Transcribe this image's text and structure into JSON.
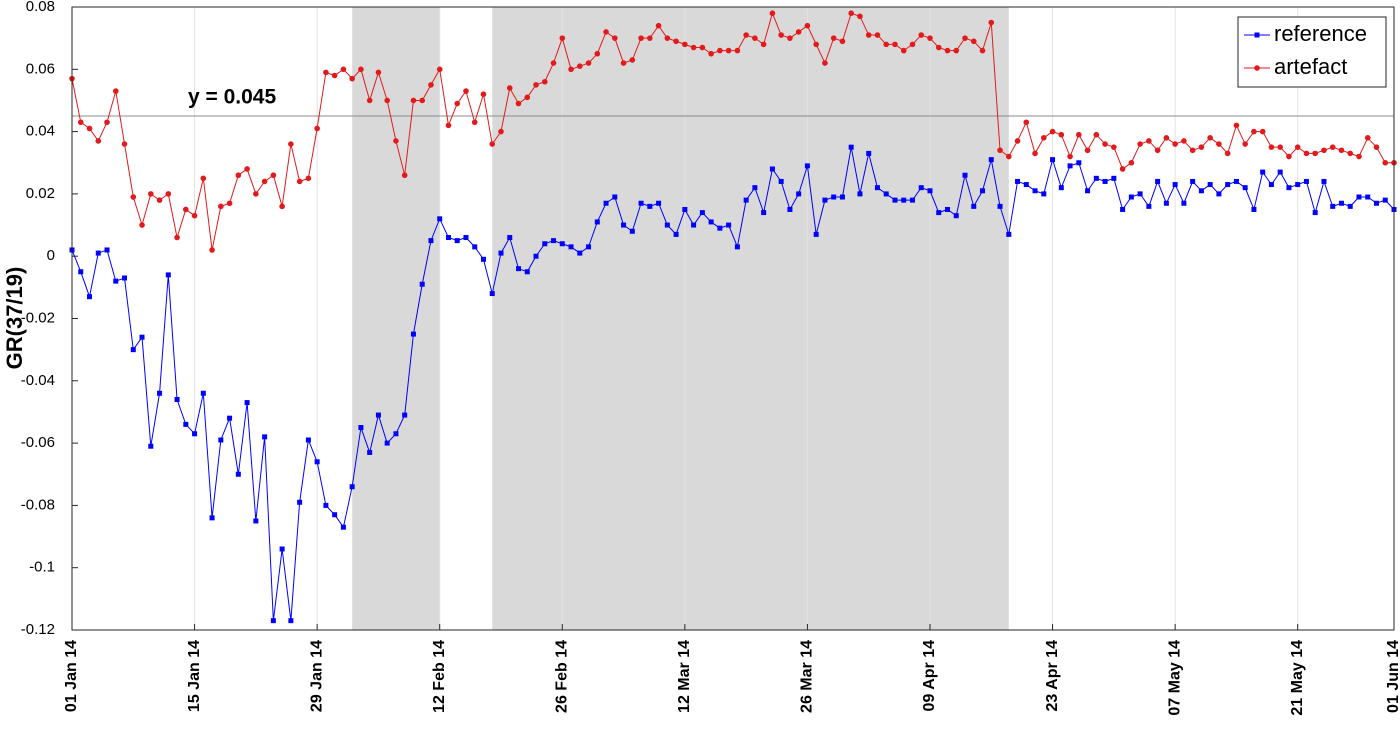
{
  "chart_data": {
    "type": "line",
    "y_label": "GR(37/19)",
    "x": [
      "2014-01-01",
      "2014-01-02",
      "2014-01-03",
      "2014-01-04",
      "2014-01-05",
      "2014-01-06",
      "2014-01-07",
      "2014-01-08",
      "2014-01-09",
      "2014-01-10",
      "2014-01-11",
      "2014-01-12",
      "2014-01-13",
      "2014-01-14",
      "2014-01-15",
      "2014-01-16",
      "2014-01-17",
      "2014-01-18",
      "2014-01-19",
      "2014-01-20",
      "2014-01-21",
      "2014-01-22",
      "2014-01-23",
      "2014-01-24",
      "2014-01-25",
      "2014-01-26",
      "2014-01-27",
      "2014-01-28",
      "2014-01-29",
      "2014-01-30",
      "2014-01-31",
      "2014-02-01",
      "2014-02-02",
      "2014-02-03",
      "2014-02-04",
      "2014-02-05",
      "2014-02-06",
      "2014-02-07",
      "2014-02-08",
      "2014-02-09",
      "2014-02-10",
      "2014-02-11",
      "2014-02-12",
      "2014-02-13",
      "2014-02-14",
      "2014-02-15",
      "2014-02-16",
      "2014-02-17",
      "2014-02-18",
      "2014-02-19",
      "2014-02-20",
      "2014-02-21",
      "2014-02-22",
      "2014-02-23",
      "2014-02-24",
      "2014-02-25",
      "2014-02-26",
      "2014-02-27",
      "2014-02-28",
      "2014-03-01",
      "2014-03-02",
      "2014-03-03",
      "2014-03-04",
      "2014-03-05",
      "2014-03-06",
      "2014-03-07",
      "2014-03-08",
      "2014-03-09",
      "2014-03-10",
      "2014-03-11",
      "2014-03-12",
      "2014-03-13",
      "2014-03-14",
      "2014-03-15",
      "2014-03-16",
      "2014-03-17",
      "2014-03-18",
      "2014-03-19",
      "2014-03-20",
      "2014-03-21",
      "2014-03-22",
      "2014-03-23",
      "2014-03-24",
      "2014-03-25",
      "2014-03-26",
      "2014-03-27",
      "2014-03-28",
      "2014-03-29",
      "2014-03-30",
      "2014-03-31",
      "2014-04-01",
      "2014-04-02",
      "2014-04-03",
      "2014-04-04",
      "2014-04-05",
      "2014-04-06",
      "2014-04-07",
      "2014-04-08",
      "2014-04-09",
      "2014-04-10",
      "2014-04-11",
      "2014-04-12",
      "2014-04-13",
      "2014-04-14",
      "2014-04-15",
      "2014-04-16",
      "2014-04-17",
      "2014-04-18",
      "2014-04-19",
      "2014-04-20",
      "2014-04-21",
      "2014-04-22",
      "2014-04-23",
      "2014-04-24",
      "2014-04-25",
      "2014-04-26",
      "2014-04-27",
      "2014-04-28",
      "2014-04-29",
      "2014-04-30",
      "2014-05-01",
      "2014-05-02",
      "2014-05-03",
      "2014-05-04",
      "2014-05-05",
      "2014-05-06",
      "2014-05-07",
      "2014-05-08",
      "2014-05-09",
      "2014-05-10",
      "2014-05-11",
      "2014-05-12",
      "2014-05-13",
      "2014-05-14",
      "2014-05-15",
      "2014-05-16",
      "2014-05-17",
      "2014-05-18",
      "2014-05-19",
      "2014-05-20",
      "2014-05-21",
      "2014-05-22",
      "2014-05-23",
      "2014-05-24",
      "2014-05-25",
      "2014-05-26",
      "2014-05-27",
      "2014-05-28",
      "2014-05-29",
      "2014-05-30",
      "2014-05-31",
      "2014-06-01"
    ],
    "series": [
      {
        "name": "reference",
        "color": "#0000ff",
        "marker": "square",
        "values": [
          0.002,
          -0.005,
          -0.013,
          0.001,
          0.002,
          -0.008,
          -0.007,
          -0.03,
          -0.026,
          -0.061,
          -0.044,
          -0.006,
          -0.046,
          -0.054,
          -0.057,
          -0.044,
          -0.084,
          -0.059,
          -0.052,
          -0.07,
          -0.047,
          -0.085,
          -0.058,
          -0.117,
          -0.094,
          -0.117,
          -0.079,
          -0.059,
          -0.066,
          -0.08,
          -0.083,
          -0.087,
          -0.074,
          -0.055,
          -0.063,
          -0.051,
          -0.06,
          -0.057,
          -0.051,
          -0.025,
          -0.009,
          0.005,
          0.012,
          0.006,
          0.005,
          0.006,
          0.003,
          -0.001,
          -0.012,
          0.001,
          0.006,
          -0.004,
          -0.005,
          0.0,
          0.004,
          0.005,
          0.004,
          0.003,
          0.001,
          0.003,
          0.011,
          0.017,
          0.019,
          0.01,
          0.008,
          0.017,
          0.016,
          0.017,
          0.01,
          0.007,
          0.015,
          0.01,
          0.014,
          0.011,
          0.009,
          0.01,
          0.003,
          0.018,
          0.022,
          0.014,
          0.028,
          0.024,
          0.015,
          0.02,
          0.029,
          0.007,
          0.018,
          0.019,
          0.019,
          0.035,
          0.02,
          0.033,
          0.022,
          0.02,
          0.018,
          0.018,
          0.018,
          0.022,
          0.021,
          0.014,
          0.015,
          0.013,
          0.026,
          0.016,
          0.021,
          0.031,
          0.016,
          0.007,
          0.024,
          0.023,
          0.021,
          0.02,
          0.031,
          0.022,
          0.029,
          0.03,
          0.021,
          0.025,
          0.024,
          0.025,
          0.015,
          0.019,
          0.02,
          0.016,
          0.024,
          0.017,
          0.023,
          0.017,
          0.024,
          0.021,
          0.023,
          0.02,
          0.023,
          0.024,
          0.022,
          0.015,
          0.027,
          0.023,
          0.027,
          0.022,
          0.023,
          0.024,
          0.014,
          0.024,
          0.016,
          0.017,
          0.016,
          0.019,
          0.019,
          0.017,
          0.018,
          0.015
        ]
      },
      {
        "name": "artefact",
        "color": "#e31a1c",
        "marker": "circle",
        "values": [
          0.057,
          0.043,
          0.041,
          0.037,
          0.043,
          0.053,
          0.036,
          0.019,
          0.01,
          0.02,
          0.018,
          0.02,
          0.006,
          0.015,
          0.013,
          0.025,
          0.002,
          0.016,
          0.017,
          0.026,
          0.028,
          0.02,
          0.024,
          0.026,
          0.016,
          0.036,
          0.024,
          0.025,
          0.041,
          0.059,
          0.058,
          0.06,
          0.057,
          0.06,
          0.05,
          0.059,
          0.05,
          0.037,
          0.026,
          0.05,
          0.05,
          0.055,
          0.06,
          0.042,
          0.049,
          0.053,
          0.043,
          0.052,
          0.036,
          0.04,
          0.054,
          0.049,
          0.051,
          0.055,
          0.056,
          0.062,
          0.07,
          0.06,
          0.061,
          0.062,
          0.065,
          0.072,
          0.07,
          0.062,
          0.063,
          0.07,
          0.07,
          0.074,
          0.07,
          0.069,
          0.068,
          0.067,
          0.067,
          0.065,
          0.066,
          0.066,
          0.066,
          0.071,
          0.07,
          0.068,
          0.078,
          0.071,
          0.07,
          0.072,
          0.074,
          0.068,
          0.062,
          0.07,
          0.069,
          0.078,
          0.077,
          0.071,
          0.071,
          0.068,
          0.068,
          0.066,
          0.068,
          0.071,
          0.07,
          0.067,
          0.066,
          0.066,
          0.07,
          0.069,
          0.066,
          0.075,
          0.034,
          0.032,
          0.037,
          0.043,
          0.033,
          0.038,
          0.04,
          0.039,
          0.032,
          0.039,
          0.034,
          0.039,
          0.036,
          0.035,
          0.028,
          0.03,
          0.036,
          0.037,
          0.034,
          0.038,
          0.036,
          0.037,
          0.034,
          0.035,
          0.038,
          0.036,
          0.033,
          0.042,
          0.036,
          0.04,
          0.04,
          0.035,
          0.035,
          0.032,
          0.035,
          0.033,
          0.033,
          0.034,
          0.035,
          0.034,
          0.033,
          0.032,
          0.038,
          0.035,
          0.03,
          0.03
        ]
      }
    ],
    "xlim": [
      "2014-01-01",
      "2014-06-01"
    ],
    "xticks": [
      {
        "value": "2014-01-01",
        "label": "01 Jan 14"
      },
      {
        "value": "2014-01-15",
        "label": "15 Jan 14"
      },
      {
        "value": "2014-01-29",
        "label": "29 Jan 14"
      },
      {
        "value": "2014-02-12",
        "label": "12 Feb 14"
      },
      {
        "value": "2014-02-26",
        "label": "26 Feb 14"
      },
      {
        "value": "2014-03-12",
        "label": "12 Mar 14"
      },
      {
        "value": "2014-03-26",
        "label": "26 Mar 14"
      },
      {
        "value": "2014-04-09",
        "label": "09 Apr 14"
      },
      {
        "value": "2014-04-23",
        "label": "23 Apr 14"
      },
      {
        "value": "2014-05-07",
        "label": "07 May 14"
      },
      {
        "value": "2014-05-21",
        "label": "21 May 14"
      },
      {
        "value": "2014-06-01",
        "label": "01 Jun 14"
      }
    ],
    "ylim": [
      -0.12,
      0.08
    ],
    "yticks": [
      0.08,
      0.06,
      0.04,
      0.02,
      0,
      -0.02,
      -0.04,
      -0.06,
      -0.08,
      -0.1,
      -0.12
    ],
    "x_grid": true,
    "shaded_regions": [
      [
        "2014-02-02",
        "2014-02-12"
      ],
      [
        "2014-02-18",
        "2014-04-18"
      ]
    ],
    "shade_color": "#d9d9d9",
    "reference_line": {
      "value": 0.045,
      "label": "y = 0.045"
    },
    "legend": "top-right"
  }
}
